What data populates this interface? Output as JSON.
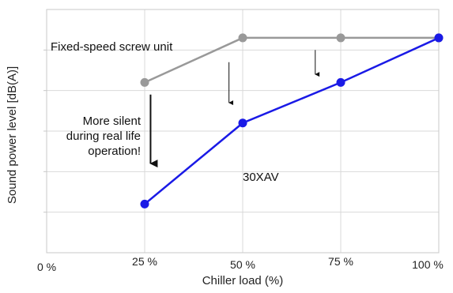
{
  "chart_data": {
    "type": "line",
    "xlabel": "Chiller load (%)",
    "ylabel": "Sound power level [dB(A)]",
    "x": [
      0,
      25,
      50,
      75,
      100
    ],
    "x_tick_labels": [
      "0 %",
      "25 %",
      "50 %",
      "75 %",
      "100 %"
    ],
    "xlim": [
      0,
      100
    ],
    "ylim": [
      0,
      6
    ],
    "grid": true,
    "y_tick_labels_shown": false,
    "series": [
      {
        "name": "Fixed-speed screw  unit",
        "color": "#999999",
        "points": [
          [
            25,
            4.2
          ],
          [
            50,
            5.3
          ],
          [
            75,
            5.3
          ],
          [
            100,
            5.3
          ]
        ]
      },
      {
        "name": "30XAV",
        "color": "#1a1ae6",
        "points": [
          [
            25,
            1.2
          ],
          [
            50,
            3.2
          ],
          [
            75,
            4.2
          ],
          [
            100,
            5.3
          ]
        ]
      }
    ],
    "annotations": {
      "silent_lines": [
        "More silent",
        "during real life",
        "operation!"
      ]
    },
    "arrows": [
      {
        "x": 26.5,
        "from": 3.9,
        "to": 2.2,
        "bold": true
      },
      {
        "x": 46.5,
        "from": 4.7,
        "to": 3.7,
        "bold": false
      },
      {
        "x": 68.5,
        "from": 5.0,
        "to": 4.4,
        "bold": false
      }
    ]
  }
}
